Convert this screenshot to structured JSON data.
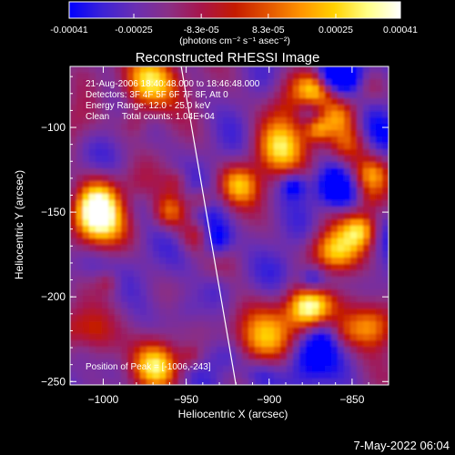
{
  "colorbar": {
    "ticks": [
      "-0.00041",
      "-0.00025",
      "-8.3e-05",
      "8.3e-05",
      "0.00025",
      "0.00041"
    ],
    "tick_values": [
      -0.00041,
      -0.00025,
      -8.3e-05,
      8.3e-05,
      0.00025,
      0.00041
    ],
    "range": [
      -0.00041,
      0.00041
    ],
    "units": "(photons cm⁻² s⁻¹ asec⁻²)",
    "stops": [
      "#0000ff",
      "#3c22d6",
      "#6a2fb2",
      "#8a2f86",
      "#a8154a",
      "#c41a00",
      "#e35400",
      "#ff9400",
      "#ffd200",
      "#ffff86",
      "#ffffff"
    ]
  },
  "chart_data": {
    "type": "heatmap",
    "title": "Reconstructed RHESSI Image",
    "xlabel": "Heliocentric X (arcsec)",
    "ylabel": "Heliocentric Y (arcsec)",
    "xlim": [
      -1020,
      -828
    ],
    "ylim": [
      -252,
      -64
    ],
    "xticks": [
      -1000,
      -950,
      -900,
      -850
    ],
    "yticks": [
      -100,
      -150,
      -200,
      -250
    ],
    "xtick_labels": [
      "−1000",
      "−950",
      "−900",
      "−850"
    ],
    "ytick_labels": [
      "−100",
      "−150",
      "−200",
      "−250"
    ],
    "info_lines": [
      "21-Aug-2006 18:40:48.000 to 18:46:48.000",
      "Detectors: 3F 4F 5F 6F 7F 8F, Att 0",
      "Energy Range: 12.0 - 25.0 keV",
      "Clean     Total counts: 1.04E+04"
    ],
    "peak_label": "Position of Peak = [-1006,-243]",
    "peak": [
      -1006,
      -243
    ],
    "limb_line": [
      [
        -953,
        -64
      ],
      [
        -920,
        -252
      ]
    ],
    "grid": false,
    "colormap": "rhessi-blue-red-white"
  },
  "footer": {
    "date": "7-May-2022 06:04"
  }
}
